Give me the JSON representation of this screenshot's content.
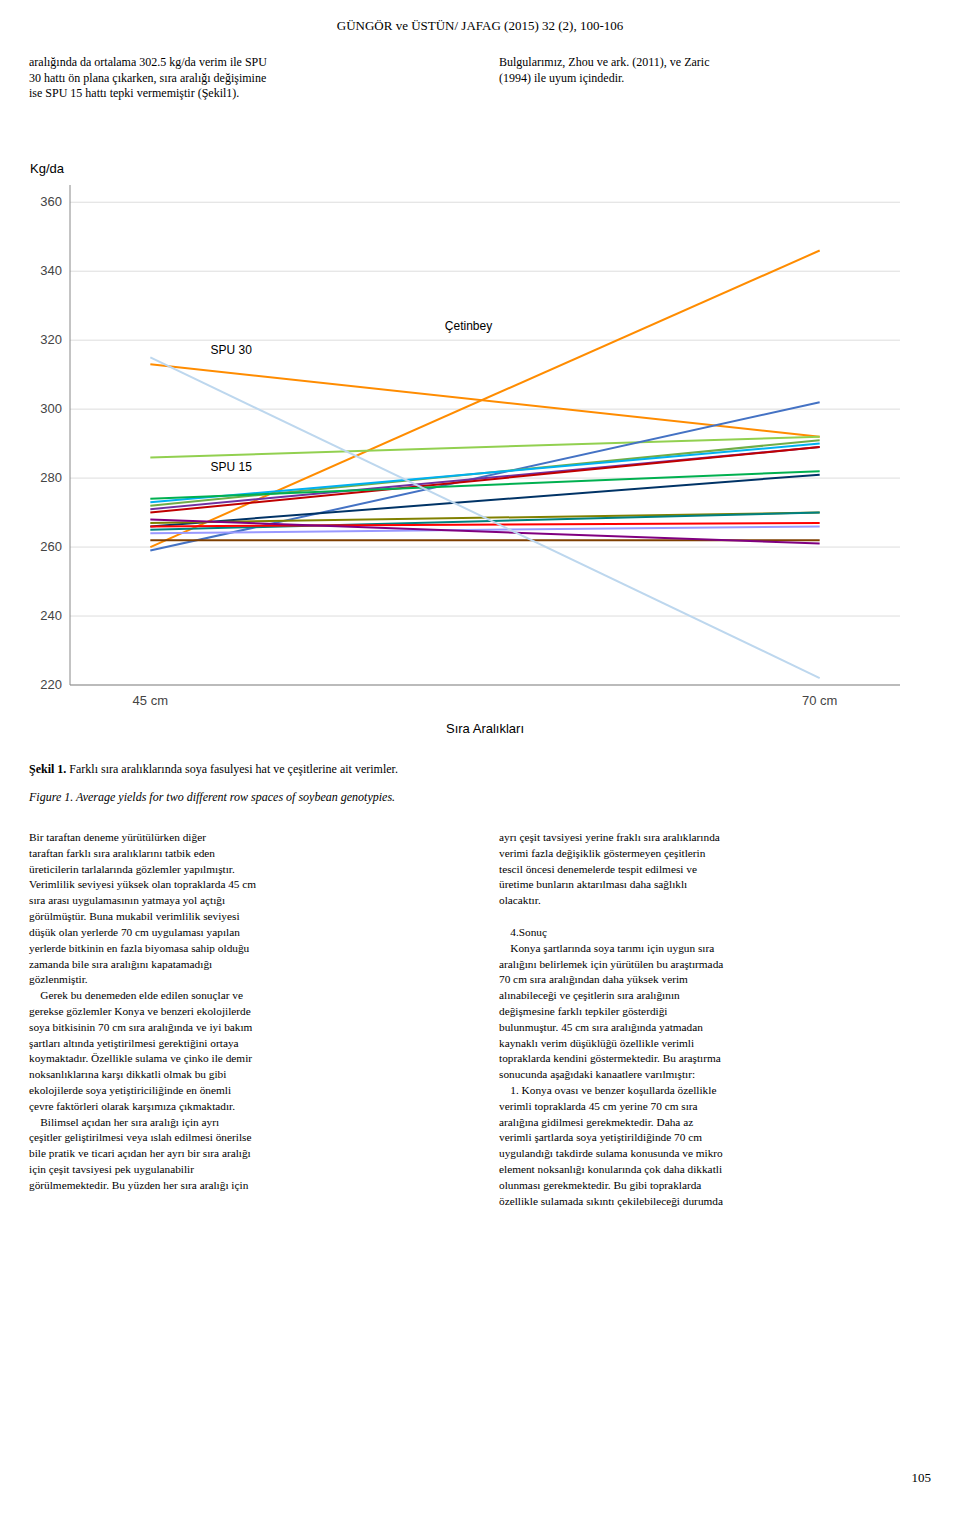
{
  "page_title": "GÜNGÖR ve ÜSTÜN/ JAFAG (2015) 32 (2), 100-106",
  "text_left": "aralığında da ortalama 302.5 kg/da verim ile SPU\n30 hattı ön plana çıkarken, sıra aralığı değişimine\nise SPU 15 hattı tepki vermemiştir (Şekil1).",
  "text_right": "Bulgularımız, Zhou ve ark. (2011), ve Zaric\n(1994) ile uyum içindedir.",
  "chart_data": {
    "type": "line",
    "y_label": "Kg/da",
    "x_label": "Sıra Aralıkları",
    "categories": [
      "45 cm",
      "70 cm"
    ],
    "ylim": [
      220,
      365
    ],
    "yticks": [
      220,
      240,
      260,
      280,
      300,
      320,
      340,
      360
    ],
    "grid": true,
    "series": [
      {
        "color": "#FF8C00",
        "values": [
          260,
          346
        ]
      },
      {
        "color": "#FF8C00",
        "values": [
          313,
          292
        ]
      },
      {
        "color": "#92D050",
        "values": [
          286,
          292
        ]
      },
      {
        "color": "#4472C4",
        "values": [
          259,
          302
        ]
      },
      {
        "color": "#70AD47",
        "values": [
          272,
          291
        ]
      },
      {
        "color": "#00B0F0",
        "values": [
          273,
          290
        ]
      },
      {
        "color": "#7030A0",
        "values": [
          271,
          289
        ]
      },
      {
        "color": "#C00000",
        "values": [
          270,
          289
        ]
      },
      {
        "color": "#00B050",
        "values": [
          274,
          282
        ]
      },
      {
        "color": "#003366",
        "values": [
          266,
          281
        ]
      },
      {
        "color": "#808000",
        "values": [
          267,
          270
        ]
      },
      {
        "color": "#008080",
        "values": [
          265,
          270
        ]
      },
      {
        "color": "#FF0000",
        "values": [
          266,
          267
        ]
      },
      {
        "color": "#9999FF",
        "values": [
          264,
          266
        ]
      },
      {
        "color": "#7F3F00",
        "values": [
          262,
          262
        ]
      },
      {
        "color": "#800080",
        "values": [
          268,
          261
        ]
      },
      {
        "color": "#BDD7EE",
        "values": [
          315,
          222
        ]
      }
    ],
    "annotations": [
      {
        "text": "Çetinbey",
        "x": 0.44,
        "y": 323
      },
      {
        "text": "SPU 30",
        "x": 0.09,
        "y": 316
      },
      {
        "text": "SPU 15",
        "x": 0.09,
        "y": 282
      }
    ]
  },
  "caption_bold": "Şekil 1.",
  "caption_normal": " Farklı sıra aralıklarında soya fasulyesi hat ve çeşitlerine ait verimler.",
  "caption_italic": "Figure 1. Average yields for two different row spaces of soybean genotypies.",
  "body_left_col1": "Bir taraftan deneme yürütülürken diğer\ntaraftan farklı sıra aralıklarını tatbik eden\nüreticilerin tarlalarında gözlemler yapılmıştır.\nVerimlilik seviyesi yüksek olan topraklarda 45 cm\nsıra arası uygulamasının yatmaya yol açtığı\ngörülmüştür. Buna mukabil verimlilik seviyesi\ndüşük olan yerlerde 70 cm uygulaması yapılan\nyerlerde bitkinin en fazla biyomasa sahip olduğu\nzamanda bile sıra aralığını kapatamadığı\ngözlenmiştir.\n    Gerek bu denemeden elde edilen sonuçlar ve\ngerekse gözlemler Konya ve benzeri ekolojilerde\nsoya bitkisinin 70 cm sıra aralığında ve iyi bakım\nşartları altında yetiştirilmesi gerektiğini ortaya\nkoymaktadır. Özellikle sulama ve çinko ile demir\nnoksanlıklarına karşı dikkatli olmak bu gibi\nekolojilerde soya yetiştiriciliğinde en önemli\nçevre faktörleri olarak karşımıza çıkmaktadır.\n    Bilimsel açıdan her sıra aralığı için ayrı\nçeşitler geliştirilmesi veya ıslah edilmesi önerilse\nbile pratik ve ticari açıdan her ayrı bir sıra aralığı\niçin çeşit tavsiyesi pek uygulanabilir\ngörülmemektedir. Bu yüzden her sıra aralığı için",
  "body_right_col1": "ayrı çeşit tavsiyesi yerine fraklı sıra aralıklarında\nverimi fazla değişiklik göstermeyen çeşitlerin\ntescil öncesi denemelerde tespit edilmesi ve\nüretime bunların aktarılması daha sağlıklı\nolacaktır.\n\n    4.Sonuç\n    Konya şartlarında soya tarımı için uygun sıra\naralığını belirlemek için yürütülen bu araştırmada\n70 cm sıra aralığından daha yüksek verim\nalınabileceği ve çeşitlerin sıra aralığının\ndeğişmesine farklı tepkiler gösterdiği\nbulunmuştur. 45 cm sıra aralığında yatmadan\nkaynaklı verim düşüklüğü özellikle verimli\ntopraklarda kendini göstermektedir. Bu araştırma\nsonucunda aşağıdaki kanaatlere varılmıştır:\n    1. Konya ovası ve benzer koşullarda özellikle\nverimli topraklarda 45 cm yerine 70 cm sıra\naralığına gidilmesi gerekmektedir. Daha az\nverimli şartlarda soya yetiştirildiğinde 70 cm\nuygulandığı takdirde sulama konusunda ve mikro\nelement noksanlığı konularında çok daha dikkatli\nolunması gerekmektedir. Bu gibi topraklarda\nözellikle sulamada sıkıntı çekilebileceği durumda",
  "page_number": "105"
}
